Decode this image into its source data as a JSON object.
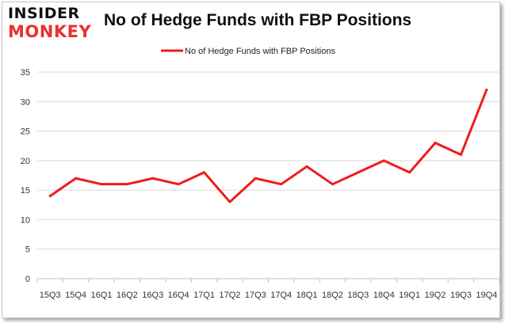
{
  "brand": {
    "line1": "INSIDER",
    "line2": "MONKEY"
  },
  "colors": {
    "series": "#ef1c1c",
    "brand_red": "#e8312f",
    "grid": "#d9d9d9"
  },
  "chart_data": {
    "type": "line",
    "title": "No of Hedge Funds with FBP Positions",
    "xlabel": "",
    "ylabel": "",
    "legend_position": "top-center",
    "grid": true,
    "ylim": [
      0,
      35
    ],
    "yticks": [
      0,
      5,
      10,
      15,
      20,
      25,
      30,
      35
    ],
    "categories": [
      "15Q3",
      "15Q4",
      "16Q1",
      "16Q2",
      "16Q3",
      "16Q4",
      "17Q1",
      "17Q2",
      "17Q3",
      "17Q4",
      "18Q1",
      "18Q2",
      "18Q3",
      "18Q4",
      "19Q1",
      "19Q2",
      "19Q3",
      "19Q4"
    ],
    "series": [
      {
        "name": "No of Hedge Funds with FBP Positions",
        "values": [
          14,
          17,
          16,
          16,
          17,
          16,
          18,
          13,
          17,
          16,
          19,
          16,
          18,
          20,
          18,
          23,
          21,
          32
        ]
      }
    ]
  }
}
